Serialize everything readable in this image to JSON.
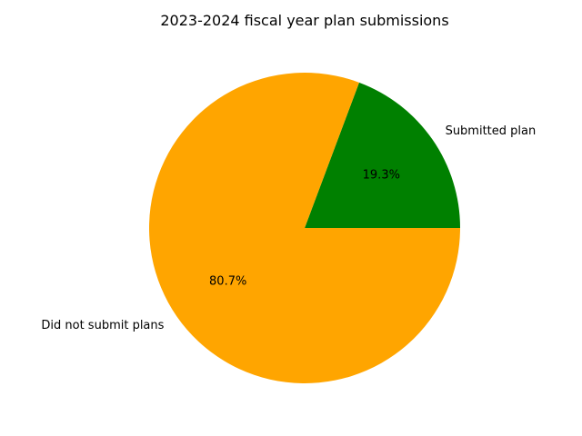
{
  "chart_data": {
    "type": "pie",
    "title": "2023-2024 fiscal year plan submissions",
    "slices": [
      {
        "label": "Submitted plan",
        "value": 19.3,
        "pct_label": "19.3%",
        "color": "#008000"
      },
      {
        "label": "Did not submit plans",
        "value": 80.7,
        "pct_label": "80.7%",
        "color": "#FFA500"
      }
    ],
    "start_angle_deg": 0,
    "direction": "counterclockwise",
    "legend": "none"
  }
}
